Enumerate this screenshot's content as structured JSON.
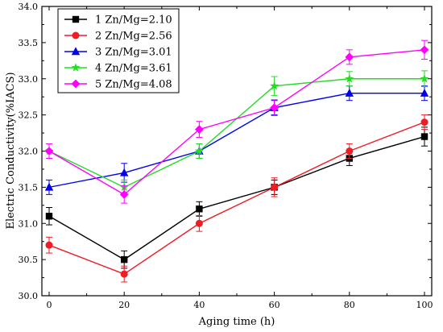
{
  "chart_data": {
    "type": "line",
    "xlabel": "Aging time (h)",
    "ylabel": "Electric Conductivity(%IACS)",
    "xlim": [
      0,
      100
    ],
    "ylim": [
      30.0,
      34.0
    ],
    "xticks": [
      0,
      20,
      40,
      60,
      80,
      100
    ],
    "yticks": [
      30.0,
      30.5,
      31.0,
      31.5,
      32.0,
      32.5,
      33.0,
      33.5,
      34.0
    ],
    "x": [
      0,
      20,
      40,
      60,
      80,
      100
    ],
    "legend_position": "top-left",
    "grid": false,
    "series": [
      {
        "name": "1 Zn/Mg=2.10",
        "color": "#000000",
        "marker": "square",
        "values": [
          31.1,
          30.5,
          31.2,
          31.5,
          31.9,
          32.2
        ],
        "errors": [
          0.12,
          0.12,
          0.1,
          0.1,
          0.1,
          0.13
        ]
      },
      {
        "name": "2 Zn/Mg=2.56",
        "color": "#ee1c24",
        "marker": "circle",
        "values": [
          30.7,
          30.3,
          31.0,
          31.5,
          32.0,
          32.4
        ],
        "errors": [
          0.11,
          0.11,
          0.11,
          0.13,
          0.1,
          0.1
        ]
      },
      {
        "name": "3 Zn/Mg=3.01",
        "color": "#0000ee",
        "marker": "triangle",
        "values": [
          31.5,
          31.7,
          32.0,
          32.6,
          32.8,
          32.8
        ],
        "errors": [
          0.1,
          0.13,
          0.1,
          0.1,
          0.1,
          0.1
        ]
      },
      {
        "name": "4 Zn/Mg=3.61",
        "color": "#22dd22",
        "marker": "star",
        "values": [
          32.0,
          31.5,
          32.0,
          32.9,
          33.0,
          33.0
        ],
        "errors": [
          0.1,
          0.1,
          0.1,
          0.13,
          0.1,
          0.11
        ]
      },
      {
        "name": "5 Zn/Mg=4.08",
        "color": "#ff00ff",
        "marker": "diamond",
        "values": [
          32.0,
          31.4,
          32.3,
          32.6,
          33.3,
          33.4
        ],
        "errors": [
          0.1,
          0.12,
          0.11,
          0.11,
          0.1,
          0.13
        ]
      }
    ]
  }
}
